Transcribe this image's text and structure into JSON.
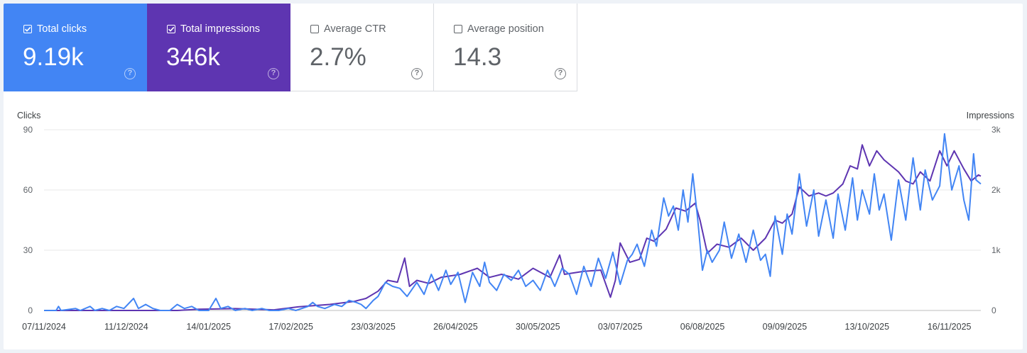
{
  "metrics": [
    {
      "label": "Total clicks",
      "value": "9.19k",
      "checked": true,
      "color": "#4285f4"
    },
    {
      "label": "Total impressions",
      "value": "346k",
      "checked": true,
      "color": "#5e35b1"
    },
    {
      "label": "Average CTR",
      "value": "2.7%",
      "checked": false
    },
    {
      "label": "Average position",
      "value": "14.3",
      "checked": false
    }
  ],
  "help_icon": "help-circle-icon",
  "chart_data": {
    "type": "line",
    "ylabel": "Clicks",
    "y2label": "Impressions",
    "ylim": [
      0,
      90
    ],
    "y2lim": [
      0,
      3000
    ],
    "yticks": [
      "0",
      "30",
      "60",
      "90"
    ],
    "y2ticks": [
      "0",
      "1k",
      "2k",
      "3k"
    ],
    "xticks": [
      "07/11/2024",
      "11/12/2024",
      "14/01/2025",
      "17/02/2025",
      "23/03/2025",
      "26/04/2025",
      "30/05/2025",
      "03/07/2025",
      "06/08/2025",
      "09/09/2025",
      "13/10/2025",
      "16/11/2025"
    ],
    "grid": true,
    "x_start": "2024-11-07",
    "x_end": "2025-11-29",
    "series": [
      {
        "name": "Clicks",
        "axis": "left",
        "color": "#4285f4",
        "points": [
          [
            "2024-11-07",
            0
          ],
          [
            "2024-11-12",
            0
          ],
          [
            "2024-11-13",
            2
          ],
          [
            "2024-11-14",
            0
          ],
          [
            "2024-11-20",
            1
          ],
          [
            "2024-11-22",
            0
          ],
          [
            "2024-11-26",
            2
          ],
          [
            "2024-11-28",
            0
          ],
          [
            "2024-12-01",
            1
          ],
          [
            "2024-12-04",
            0
          ],
          [
            "2024-12-07",
            2
          ],
          [
            "2024-12-10",
            1
          ],
          [
            "2024-12-14",
            6
          ],
          [
            "2024-12-16",
            1
          ],
          [
            "2024-12-19",
            3
          ],
          [
            "2024-12-22",
            1
          ],
          [
            "2024-12-25",
            0
          ],
          [
            "2024-12-29",
            0
          ],
          [
            "2025-01-01",
            3
          ],
          [
            "2025-01-04",
            1
          ],
          [
            "2025-01-07",
            2
          ],
          [
            "2025-01-10",
            0
          ],
          [
            "2025-01-14",
            0
          ],
          [
            "2025-01-17",
            6
          ],
          [
            "2025-01-19",
            1
          ],
          [
            "2025-01-22",
            2
          ],
          [
            "2025-01-25",
            0
          ],
          [
            "2025-01-29",
            1
          ],
          [
            "2025-02-01",
            0
          ],
          [
            "2025-02-05",
            1
          ],
          [
            "2025-02-08",
            0
          ],
          [
            "2025-02-12",
            0
          ],
          [
            "2025-02-16",
            1
          ],
          [
            "2025-02-19",
            0
          ],
          [
            "2025-02-24",
            2
          ],
          [
            "2025-02-26",
            4
          ],
          [
            "2025-02-28",
            2
          ],
          [
            "2025-03-03",
            1
          ],
          [
            "2025-03-07",
            3
          ],
          [
            "2025-03-10",
            2
          ],
          [
            "2025-03-13",
            5
          ],
          [
            "2025-03-16",
            4
          ],
          [
            "2025-03-18",
            3
          ],
          [
            "2025-03-20",
            1
          ],
          [
            "2025-03-23",
            5
          ],
          [
            "2025-03-25",
            7
          ],
          [
            "2025-03-28",
            14
          ],
          [
            "2025-03-31",
            12
          ],
          [
            "2025-04-03",
            11
          ],
          [
            "2025-04-06",
            7
          ],
          [
            "2025-04-10",
            14
          ],
          [
            "2025-04-13",
            8
          ],
          [
            "2025-04-16",
            18
          ],
          [
            "2025-04-19",
            10
          ],
          [
            "2025-04-22",
            20
          ],
          [
            "2025-04-24",
            13
          ],
          [
            "2025-04-27",
            19
          ],
          [
            "2025-04-30",
            4
          ],
          [
            "2025-05-03",
            19
          ],
          [
            "2025-05-06",
            12
          ],
          [
            "2025-05-08",
            24
          ],
          [
            "2025-05-10",
            14
          ],
          [
            "2025-05-13",
            10
          ],
          [
            "2025-05-16",
            18
          ],
          [
            "2025-05-19",
            15
          ],
          [
            "2025-05-22",
            20
          ],
          [
            "2025-05-25",
            12
          ],
          [
            "2025-05-28",
            15
          ],
          [
            "2025-05-31",
            10
          ],
          [
            "2025-06-03",
            20
          ],
          [
            "2025-06-06",
            12
          ],
          [
            "2025-06-09",
            21
          ],
          [
            "2025-06-12",
            18
          ],
          [
            "2025-06-15",
            8
          ],
          [
            "2025-06-18",
            22
          ],
          [
            "2025-06-21",
            12
          ],
          [
            "2025-06-24",
            26
          ],
          [
            "2025-06-27",
            16
          ],
          [
            "2025-06-30",
            29
          ],
          [
            "2025-07-03",
            13
          ],
          [
            "2025-07-06",
            25
          ],
          [
            "2025-07-08",
            28
          ],
          [
            "2025-07-10",
            33
          ],
          [
            "2025-07-13",
            22
          ],
          [
            "2025-07-16",
            40
          ],
          [
            "2025-07-18",
            32
          ],
          [
            "2025-07-21",
            56
          ],
          [
            "2025-07-23",
            47
          ],
          [
            "2025-07-25",
            52
          ],
          [
            "2025-07-27",
            40
          ],
          [
            "2025-07-29",
            60
          ],
          [
            "2025-07-31",
            44
          ],
          [
            "2025-08-02",
            68
          ],
          [
            "2025-08-04",
            46
          ],
          [
            "2025-08-06",
            20
          ],
          [
            "2025-08-08",
            30
          ],
          [
            "2025-08-10",
            24
          ],
          [
            "2025-08-13",
            30
          ],
          [
            "2025-08-15",
            44
          ],
          [
            "2025-08-18",
            26
          ],
          [
            "2025-08-21",
            38
          ],
          [
            "2025-08-24",
            24
          ],
          [
            "2025-08-27",
            40
          ],
          [
            "2025-08-30",
            25
          ],
          [
            "2025-09-01",
            28
          ],
          [
            "2025-09-03",
            17
          ],
          [
            "2025-09-05",
            47
          ],
          [
            "2025-09-08",
            28
          ],
          [
            "2025-09-10",
            48
          ],
          [
            "2025-09-12",
            38
          ],
          [
            "2025-09-15",
            68
          ],
          [
            "2025-09-18",
            42
          ],
          [
            "2025-09-21",
            60
          ],
          [
            "2025-09-23",
            37
          ],
          [
            "2025-09-26",
            55
          ],
          [
            "2025-09-29",
            36
          ],
          [
            "2025-10-01",
            58
          ],
          [
            "2025-10-04",
            40
          ],
          [
            "2025-10-07",
            66
          ],
          [
            "2025-10-09",
            45
          ],
          [
            "2025-10-11",
            60
          ],
          [
            "2025-10-14",
            48
          ],
          [
            "2025-10-16",
            68
          ],
          [
            "2025-10-18",
            50
          ],
          [
            "2025-10-20",
            58
          ],
          [
            "2025-10-23",
            35
          ],
          [
            "2025-10-26",
            65
          ],
          [
            "2025-10-29",
            45
          ],
          [
            "2025-11-01",
            76
          ],
          [
            "2025-11-04",
            50
          ],
          [
            "2025-11-06",
            70
          ],
          [
            "2025-11-09",
            55
          ],
          [
            "2025-11-12",
            62
          ],
          [
            "2025-11-14",
            88
          ],
          [
            "2025-11-17",
            60
          ],
          [
            "2025-11-20",
            72
          ],
          [
            "2025-11-22",
            55
          ],
          [
            "2025-11-24",
            45
          ],
          [
            "2025-11-26",
            78
          ],
          [
            "2025-11-27",
            65
          ],
          [
            "2025-11-29",
            63
          ]
        ]
      },
      {
        "name": "Impressions",
        "axis": "right",
        "color": "#5e35b1",
        "points": [
          [
            "2024-11-07",
            0
          ],
          [
            "2025-01-01",
            0
          ],
          [
            "2025-01-10",
            20
          ],
          [
            "2025-01-25",
            30
          ],
          [
            "2025-02-10",
            10
          ],
          [
            "2025-02-20",
            60
          ],
          [
            "2025-03-05",
            100
          ],
          [
            "2025-03-15",
            150
          ],
          [
            "2025-03-20",
            200
          ],
          [
            "2025-03-25",
            320
          ],
          [
            "2025-03-29",
            500
          ],
          [
            "2025-04-02",
            470
          ],
          [
            "2025-04-05",
            870
          ],
          [
            "2025-04-07",
            400
          ],
          [
            "2025-04-10",
            500
          ],
          [
            "2025-04-15",
            450
          ],
          [
            "2025-04-20",
            550
          ],
          [
            "2025-04-28",
            600
          ],
          [
            "2025-05-05",
            700
          ],
          [
            "2025-05-10",
            550
          ],
          [
            "2025-05-15",
            600
          ],
          [
            "2025-05-22",
            520
          ],
          [
            "2025-05-28",
            700
          ],
          [
            "2025-06-04",
            550
          ],
          [
            "2025-06-08",
            920
          ],
          [
            "2025-06-10",
            600
          ],
          [
            "2025-06-18",
            650
          ],
          [
            "2025-06-25",
            670
          ],
          [
            "2025-06-29",
            220
          ],
          [
            "2025-07-01",
            500
          ],
          [
            "2025-07-03",
            1120
          ],
          [
            "2025-07-07",
            800
          ],
          [
            "2025-07-11",
            850
          ],
          [
            "2025-07-14",
            1200
          ],
          [
            "2025-07-17",
            1150
          ],
          [
            "2025-07-22",
            1350
          ],
          [
            "2025-07-26",
            1700
          ],
          [
            "2025-07-30",
            1650
          ],
          [
            "2025-08-03",
            1780
          ],
          [
            "2025-08-05",
            1500
          ],
          [
            "2025-08-08",
            950
          ],
          [
            "2025-08-12",
            1100
          ],
          [
            "2025-08-17",
            1050
          ],
          [
            "2025-08-22",
            1200
          ],
          [
            "2025-08-27",
            1000
          ],
          [
            "2025-09-01",
            1200
          ],
          [
            "2025-09-05",
            1500
          ],
          [
            "2025-09-08",
            1450
          ],
          [
            "2025-09-12",
            1600
          ],
          [
            "2025-09-15",
            2050
          ],
          [
            "2025-09-19",
            1900
          ],
          [
            "2025-09-23",
            1950
          ],
          [
            "2025-09-26",
            1900
          ],
          [
            "2025-09-29",
            1950
          ],
          [
            "2025-10-03",
            2100
          ],
          [
            "2025-10-06",
            2400
          ],
          [
            "2025-10-09",
            2350
          ],
          [
            "2025-10-11",
            2750
          ],
          [
            "2025-10-14",
            2400
          ],
          [
            "2025-10-17",
            2650
          ],
          [
            "2025-10-20",
            2500
          ],
          [
            "2025-10-23",
            2400
          ],
          [
            "2025-10-26",
            2300
          ],
          [
            "2025-10-29",
            2150
          ],
          [
            "2025-11-01",
            2100
          ],
          [
            "2025-11-04",
            2300
          ],
          [
            "2025-11-08",
            2150
          ],
          [
            "2025-11-12",
            2650
          ],
          [
            "2025-11-15",
            2400
          ],
          [
            "2025-11-18",
            2650
          ],
          [
            "2025-11-22",
            2350
          ],
          [
            "2025-11-25",
            2150
          ],
          [
            "2025-11-28",
            2250
          ],
          [
            "2025-11-29",
            2230
          ]
        ]
      }
    ]
  }
}
